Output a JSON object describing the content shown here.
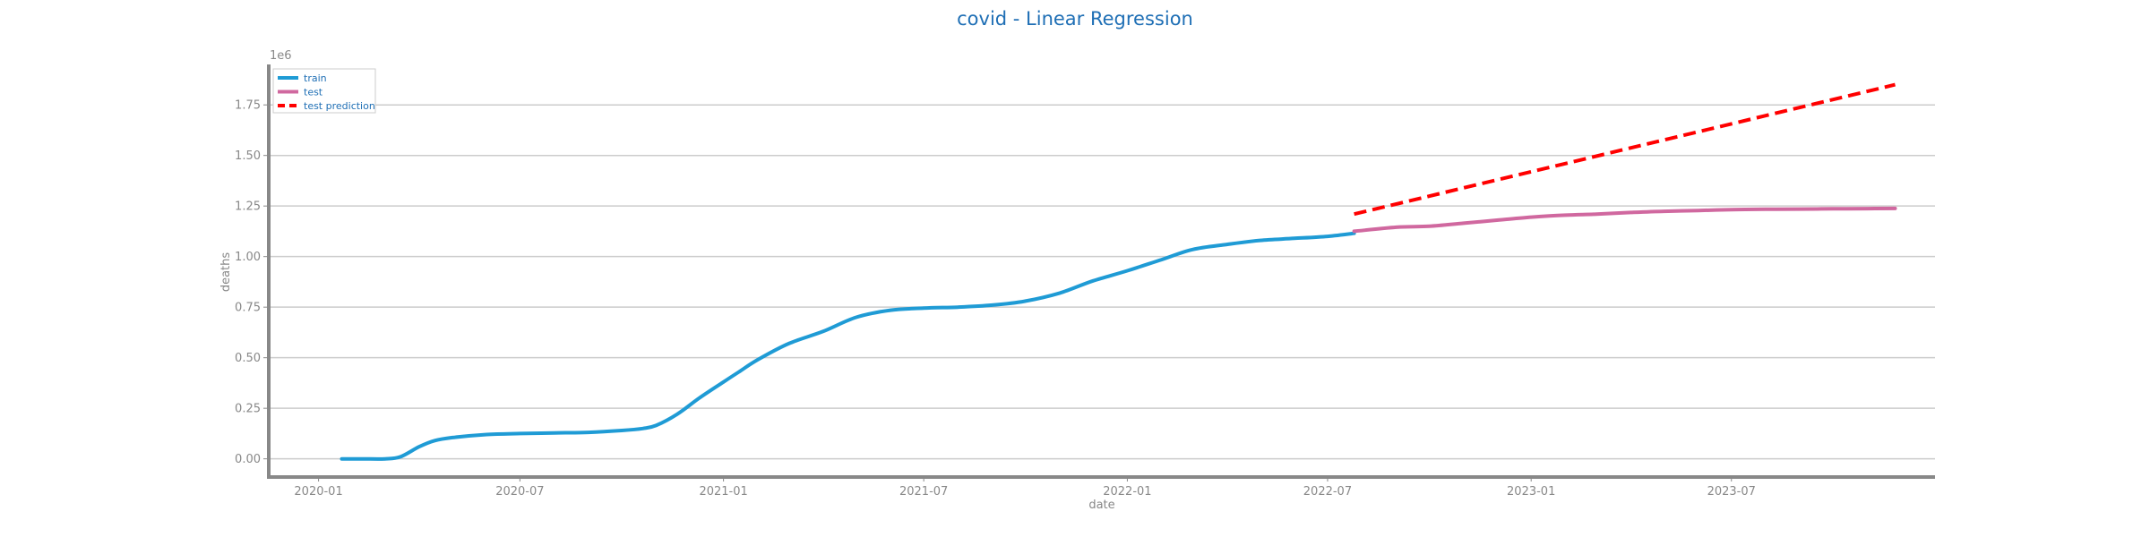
{
  "chart_data": {
    "type": "line",
    "title": "covid - Linear Regression",
    "xlabel": "date",
    "ylabel": "deaths",
    "y_scale_label": "1e6",
    "ylim": [
      -0.09,
      1.95
    ],
    "xlim": [
      "2019-11-17",
      "2024-01-01"
    ],
    "y_ticks": [
      0.0,
      0.25,
      0.5,
      0.75,
      1.0,
      1.25,
      1.5,
      1.75
    ],
    "y_tick_labels": [
      "0.00",
      "0.25",
      "0.50",
      "0.75",
      "1.00",
      "1.25",
      "1.50",
      "1.75"
    ],
    "x_ticks": [
      "2020-01-01",
      "2020-07-01",
      "2021-01-01",
      "2021-07-01",
      "2022-01-01",
      "2022-07-01",
      "2023-01-01",
      "2023-07-01"
    ],
    "x_tick_labels": [
      "2020-01",
      "2020-07",
      "2021-01",
      "2021-07",
      "2022-01",
      "2022-07",
      "2023-01",
      "2023-07"
    ],
    "grid": "horizontal",
    "legend_position": "top-left",
    "colors": {
      "title": "#1f6fb5",
      "axis": "#888888",
      "grid": "#cccccc",
      "legend_text": "#1f6fb5"
    },
    "series": [
      {
        "name": "train",
        "color": "#1f9bd5",
        "style": "solid",
        "x": [
          "2020-01-22",
          "2020-02-10",
          "2020-03-01",
          "2020-03-15",
          "2020-04-01",
          "2020-04-15",
          "2020-05-01",
          "2020-06-01",
          "2020-07-01",
          "2020-08-01",
          "2020-09-01",
          "2020-10-01",
          "2020-10-20",
          "2020-11-01",
          "2020-11-20",
          "2020-12-10",
          "2021-01-01",
          "2021-01-15",
          "2021-02-01",
          "2021-03-01",
          "2021-04-01",
          "2021-05-01",
          "2021-06-01",
          "2021-07-01",
          "2021-08-01",
          "2021-09-01",
          "2021-10-01",
          "2021-11-01",
          "2021-12-01",
          "2022-01-01",
          "2022-02-01",
          "2022-03-01",
          "2022-04-01",
          "2022-05-01",
          "2022-06-01",
          "2022-07-01",
          "2022-07-25"
        ],
        "values": [
          0.0,
          0.0,
          0.0,
          0.01,
          0.06,
          0.09,
          0.105,
          0.12,
          0.125,
          0.128,
          0.131,
          0.14,
          0.15,
          0.165,
          0.22,
          0.3,
          0.38,
          0.43,
          0.49,
          0.57,
          0.63,
          0.7,
          0.735,
          0.745,
          0.75,
          0.76,
          0.78,
          0.82,
          0.88,
          0.93,
          0.985,
          1.035,
          1.06,
          1.08,
          1.09,
          1.1,
          1.115
        ]
      },
      {
        "name": "test",
        "color": "#d0689f",
        "style": "solid",
        "x": [
          "2022-07-25",
          "2022-09-01",
          "2022-10-01",
          "2022-11-01",
          "2022-12-01",
          "2023-01-01",
          "2023-02-01",
          "2023-03-01",
          "2023-04-01",
          "2023-05-01",
          "2023-06-01",
          "2023-07-01",
          "2023-08-01",
          "2023-09-01",
          "2023-10-01",
          "2023-11-01",
          "2023-11-26"
        ],
        "values": [
          1.125,
          1.145,
          1.15,
          1.165,
          1.18,
          1.195,
          1.205,
          1.21,
          1.218,
          1.224,
          1.228,
          1.232,
          1.234,
          1.235,
          1.236,
          1.237,
          1.238
        ]
      },
      {
        "name": "test prediction",
        "color": "#ff0000",
        "style": "dashed",
        "x": [
          "2022-07-25",
          "2023-11-26"
        ],
        "values": [
          1.21,
          1.85
        ]
      }
    ]
  }
}
